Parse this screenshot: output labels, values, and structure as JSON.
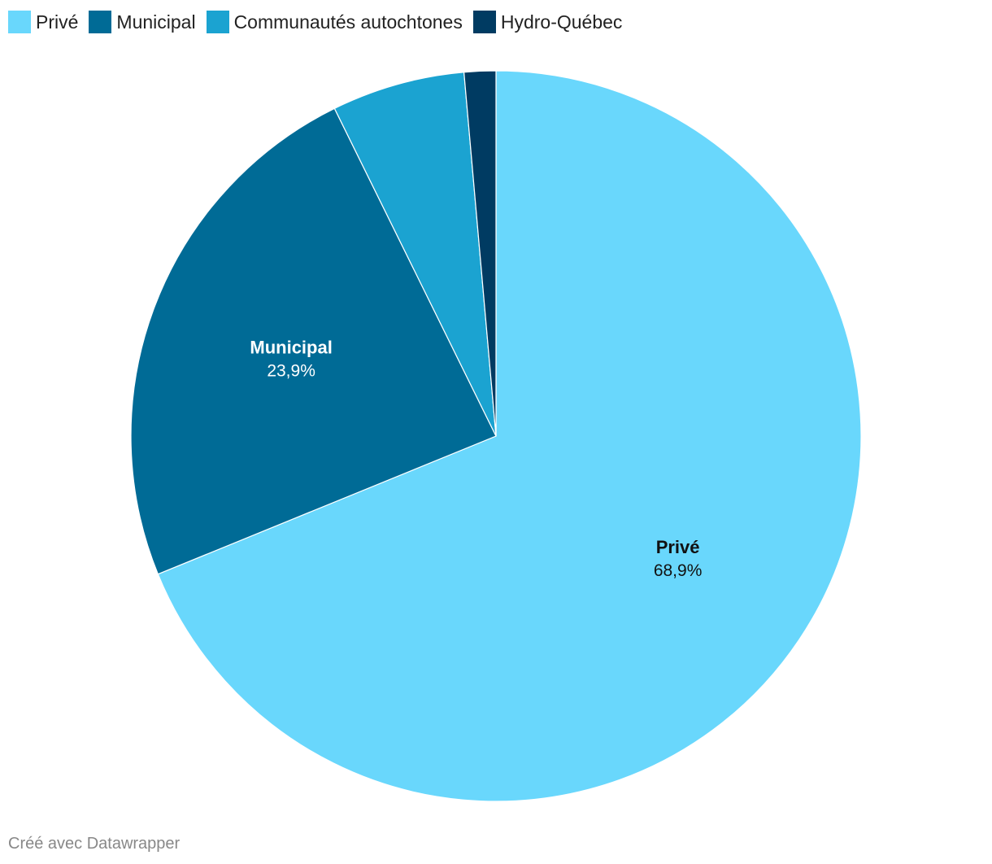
{
  "chart_data": {
    "type": "pie",
    "categories": [
      "Privé",
      "Municipal",
      "Communautés autochtones",
      "Hydro-Québec"
    ],
    "values": [
      68.9,
      23.9,
      5.9,
      1.4
    ],
    "value_labels": [
      "68,9%",
      "23,9%",
      "",
      ""
    ],
    "colors": [
      "#69d7fc",
      "#006b96",
      "#1ba3d1",
      "#003b62"
    ],
    "label_colors": [
      "#111111",
      "#ffffff",
      "",
      ""
    ],
    "legend": {
      "position": "top-left",
      "entries": [
        "Privé",
        "Municipal",
        "Communautés autochtones",
        "Hydro-Québec"
      ]
    },
    "title": ""
  },
  "legend": {
    "items": [
      {
        "label": "Privé",
        "color": "#69d7fc"
      },
      {
        "label": "Municipal",
        "color": "#006b96"
      },
      {
        "label": "Communautés autochtones",
        "color": "#1ba3d1"
      },
      {
        "label": "Hydro-Québec",
        "color": "#003b62"
      }
    ]
  },
  "footer": {
    "credit": "Créé avec Datawrapper"
  }
}
